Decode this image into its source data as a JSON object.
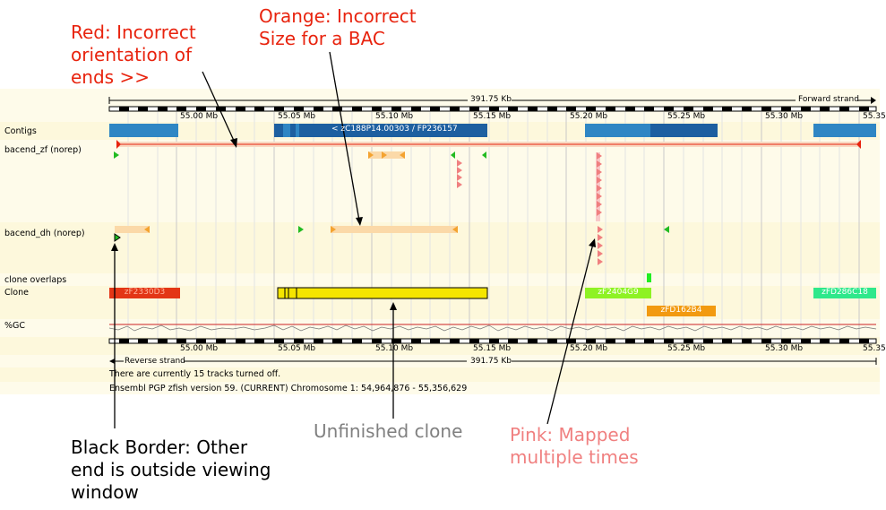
{
  "header": {
    "length_label": "391.75 Kb",
    "strand_label": "Forward strand"
  },
  "footer": {
    "length_label": "391.75 Kb",
    "strand_label": "Reverse strand",
    "tracks_off": "There are currently 15 tracks turned off.",
    "version": "Ensembl PGP zfish version 59. (CURRENT) Chromosome 1: 54,964,876 - 55,356,629"
  },
  "ruler_ticks": [
    "55.00 Mb",
    "55.05 Mb",
    "55.10 Mb",
    "55.15 Mb",
    "55.20 Mb",
    "55.25 Mb",
    "55.30 Mb",
    "55.35"
  ],
  "tracks": {
    "contigs": "Contigs",
    "bacend_zf": "bacend_zf (norep)",
    "bacend_dh": "bacend_dh (norep)",
    "clone_overlaps": "clone overlaps",
    "clone": "Clone",
    "gc": "%GC"
  },
  "contig_label": "< zC188P14.00303 / FP236157",
  "clones": {
    "c1": "zF2330D3",
    "c2": "zF2404G9",
    "c3": "zFD162B4",
    "c4": "zFD286C18"
  },
  "annotations": {
    "red": "Red: Incorrect\norientation of\nends >>",
    "orange": "Orange: Incorrect\nSize for a BAC",
    "black": "Black Border: Other\nend is outside viewing\nwindow",
    "unfinished": "Unfinished clone",
    "pink": "Pink: Mapped\nmultiple times"
  },
  "colors": {
    "red": "#e8230e",
    "orange": "#f4a330",
    "pink": "#f08080",
    "green": "#22bb22",
    "contig": "#2f86c4",
    "contig_dark": "#1d5fa0",
    "clone_yellow": "#f5e500",
    "clone_red": "#e33616",
    "clone_lime": "#8ef224",
    "clone_orange": "#f29a10",
    "clone_mint": "#2ee88b",
    "unfinished_gray": "#808080",
    "band_a": "#fdf8dc",
    "band_b": "#fefbea"
  }
}
